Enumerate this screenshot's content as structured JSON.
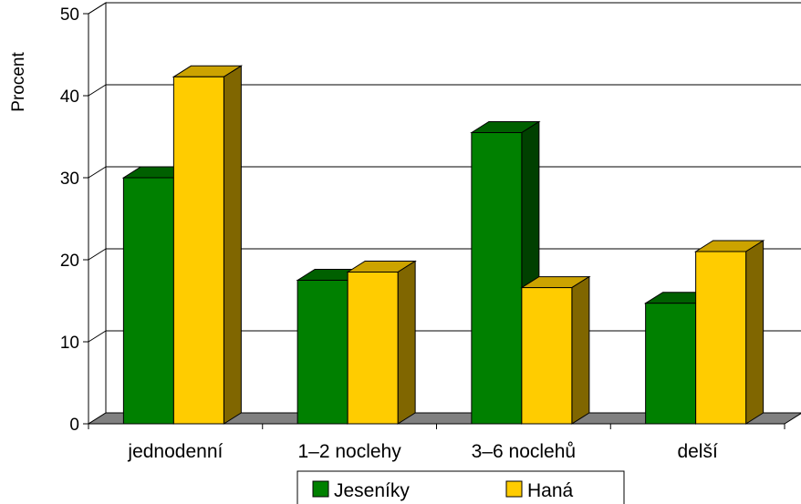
{
  "chart_data": {
    "type": "bar",
    "title": "",
    "xlabel": "",
    "ylabel": "Procent",
    "ylim": [
      0,
      50
    ],
    "yticks": [
      "0",
      "10",
      "20",
      "30",
      "40",
      "50"
    ],
    "categories": [
      "jednodenní",
      "1–2 noclehy",
      "3–6 noclehů",
      "delší"
    ],
    "series": [
      {
        "name": "Jeseníky",
        "values": [
          30,
          17.5,
          35.5,
          14.7
        ],
        "color": "#008000",
        "side_color": "#004000",
        "top_color": "#006000"
      },
      {
        "name": "Haná",
        "values": [
          42.3,
          18.5,
          16.6,
          21
        ],
        "color": "#FFCC00",
        "side_color": "#806600",
        "top_color": "#CCA300"
      }
    ],
    "grid": true,
    "legend_position": "bottom",
    "style": "3d-clustered-column"
  }
}
